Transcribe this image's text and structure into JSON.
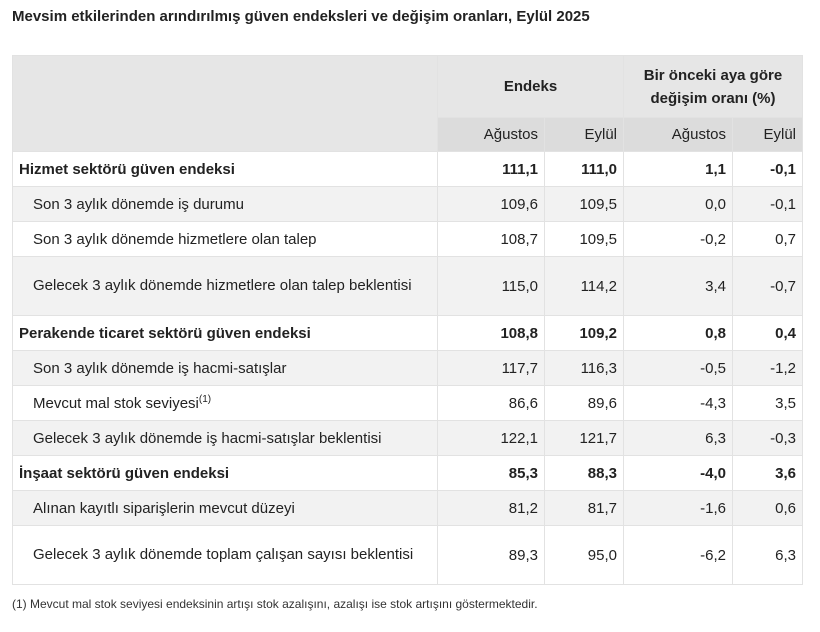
{
  "title": "Mevsim etkilerinden arındırılmış güven endeksleri ve değişim oranları, Eylül 2025",
  "header": {
    "endeks": "Endeks",
    "change": "Bir önceki aya göre değişim oranı (%)",
    "months": [
      "Ağustos",
      "Eylül",
      "Ağustos",
      "Eylül"
    ]
  },
  "rows": [
    {
      "label": "Hizmet sektörü güven endeksi",
      "type": "main",
      "values": [
        "111,1",
        "111,0",
        "1,1",
        "-0,1"
      ]
    },
    {
      "label": "Son 3 aylık dönemde iş durumu",
      "type": "sub",
      "values": [
        "109,6",
        "109,5",
        "0,0",
        "-0,1"
      ]
    },
    {
      "label": "Son 3 aylık dönemde hizmetlere olan talep",
      "type": "sub",
      "values": [
        "108,7",
        "109,5",
        "-0,2",
        "0,7"
      ]
    },
    {
      "label": "Gelecek 3 aylık dönemde hizmetlere olan talep beklentisi",
      "type": "sub tall",
      "values": [
        "115,0",
        "114,2",
        "3,4",
        "-0,7"
      ]
    },
    {
      "label": "Perakende ticaret sektörü güven endeksi",
      "type": "main",
      "values": [
        "108,8",
        "109,2",
        "0,8",
        "0,4"
      ]
    },
    {
      "label": "Son 3 aylık dönemde iş hacmi-satışlar",
      "type": "sub",
      "values": [
        "117,7",
        "116,3",
        "-0,5",
        "-1,2"
      ]
    },
    {
      "label": "Mevcut mal stok seviyesi",
      "sup": "(1)",
      "type": "sub",
      "values": [
        "86,6",
        "89,6",
        "-4,3",
        "3,5"
      ]
    },
    {
      "label": "Gelecek 3 aylık dönemde iş hacmi-satışlar beklentisi",
      "type": "sub",
      "values": [
        "122,1",
        "121,7",
        "6,3",
        "-0,3"
      ]
    },
    {
      "label": "İnşaat sektörü güven endeksi",
      "type": "main",
      "values": [
        "85,3",
        "88,3",
        "-4,0",
        "3,6"
      ]
    },
    {
      "label": "Alınan kayıtlı siparişlerin mevcut düzeyi",
      "type": "sub",
      "values": [
        "81,2",
        "81,7",
        "-1,6",
        "0,6"
      ]
    },
    {
      "label": "Gelecek 3 aylık dönemde toplam çalışan sayısı beklentisi",
      "type": "sub tall",
      "values": [
        "89,3",
        "95,0",
        "-6,2",
        "6,3"
      ]
    }
  ],
  "footnote": "(1) Mevcut mal stok seviyesi endeksinin artışı stok azalışını, azalışı ise stok artışını göstermektedir."
}
